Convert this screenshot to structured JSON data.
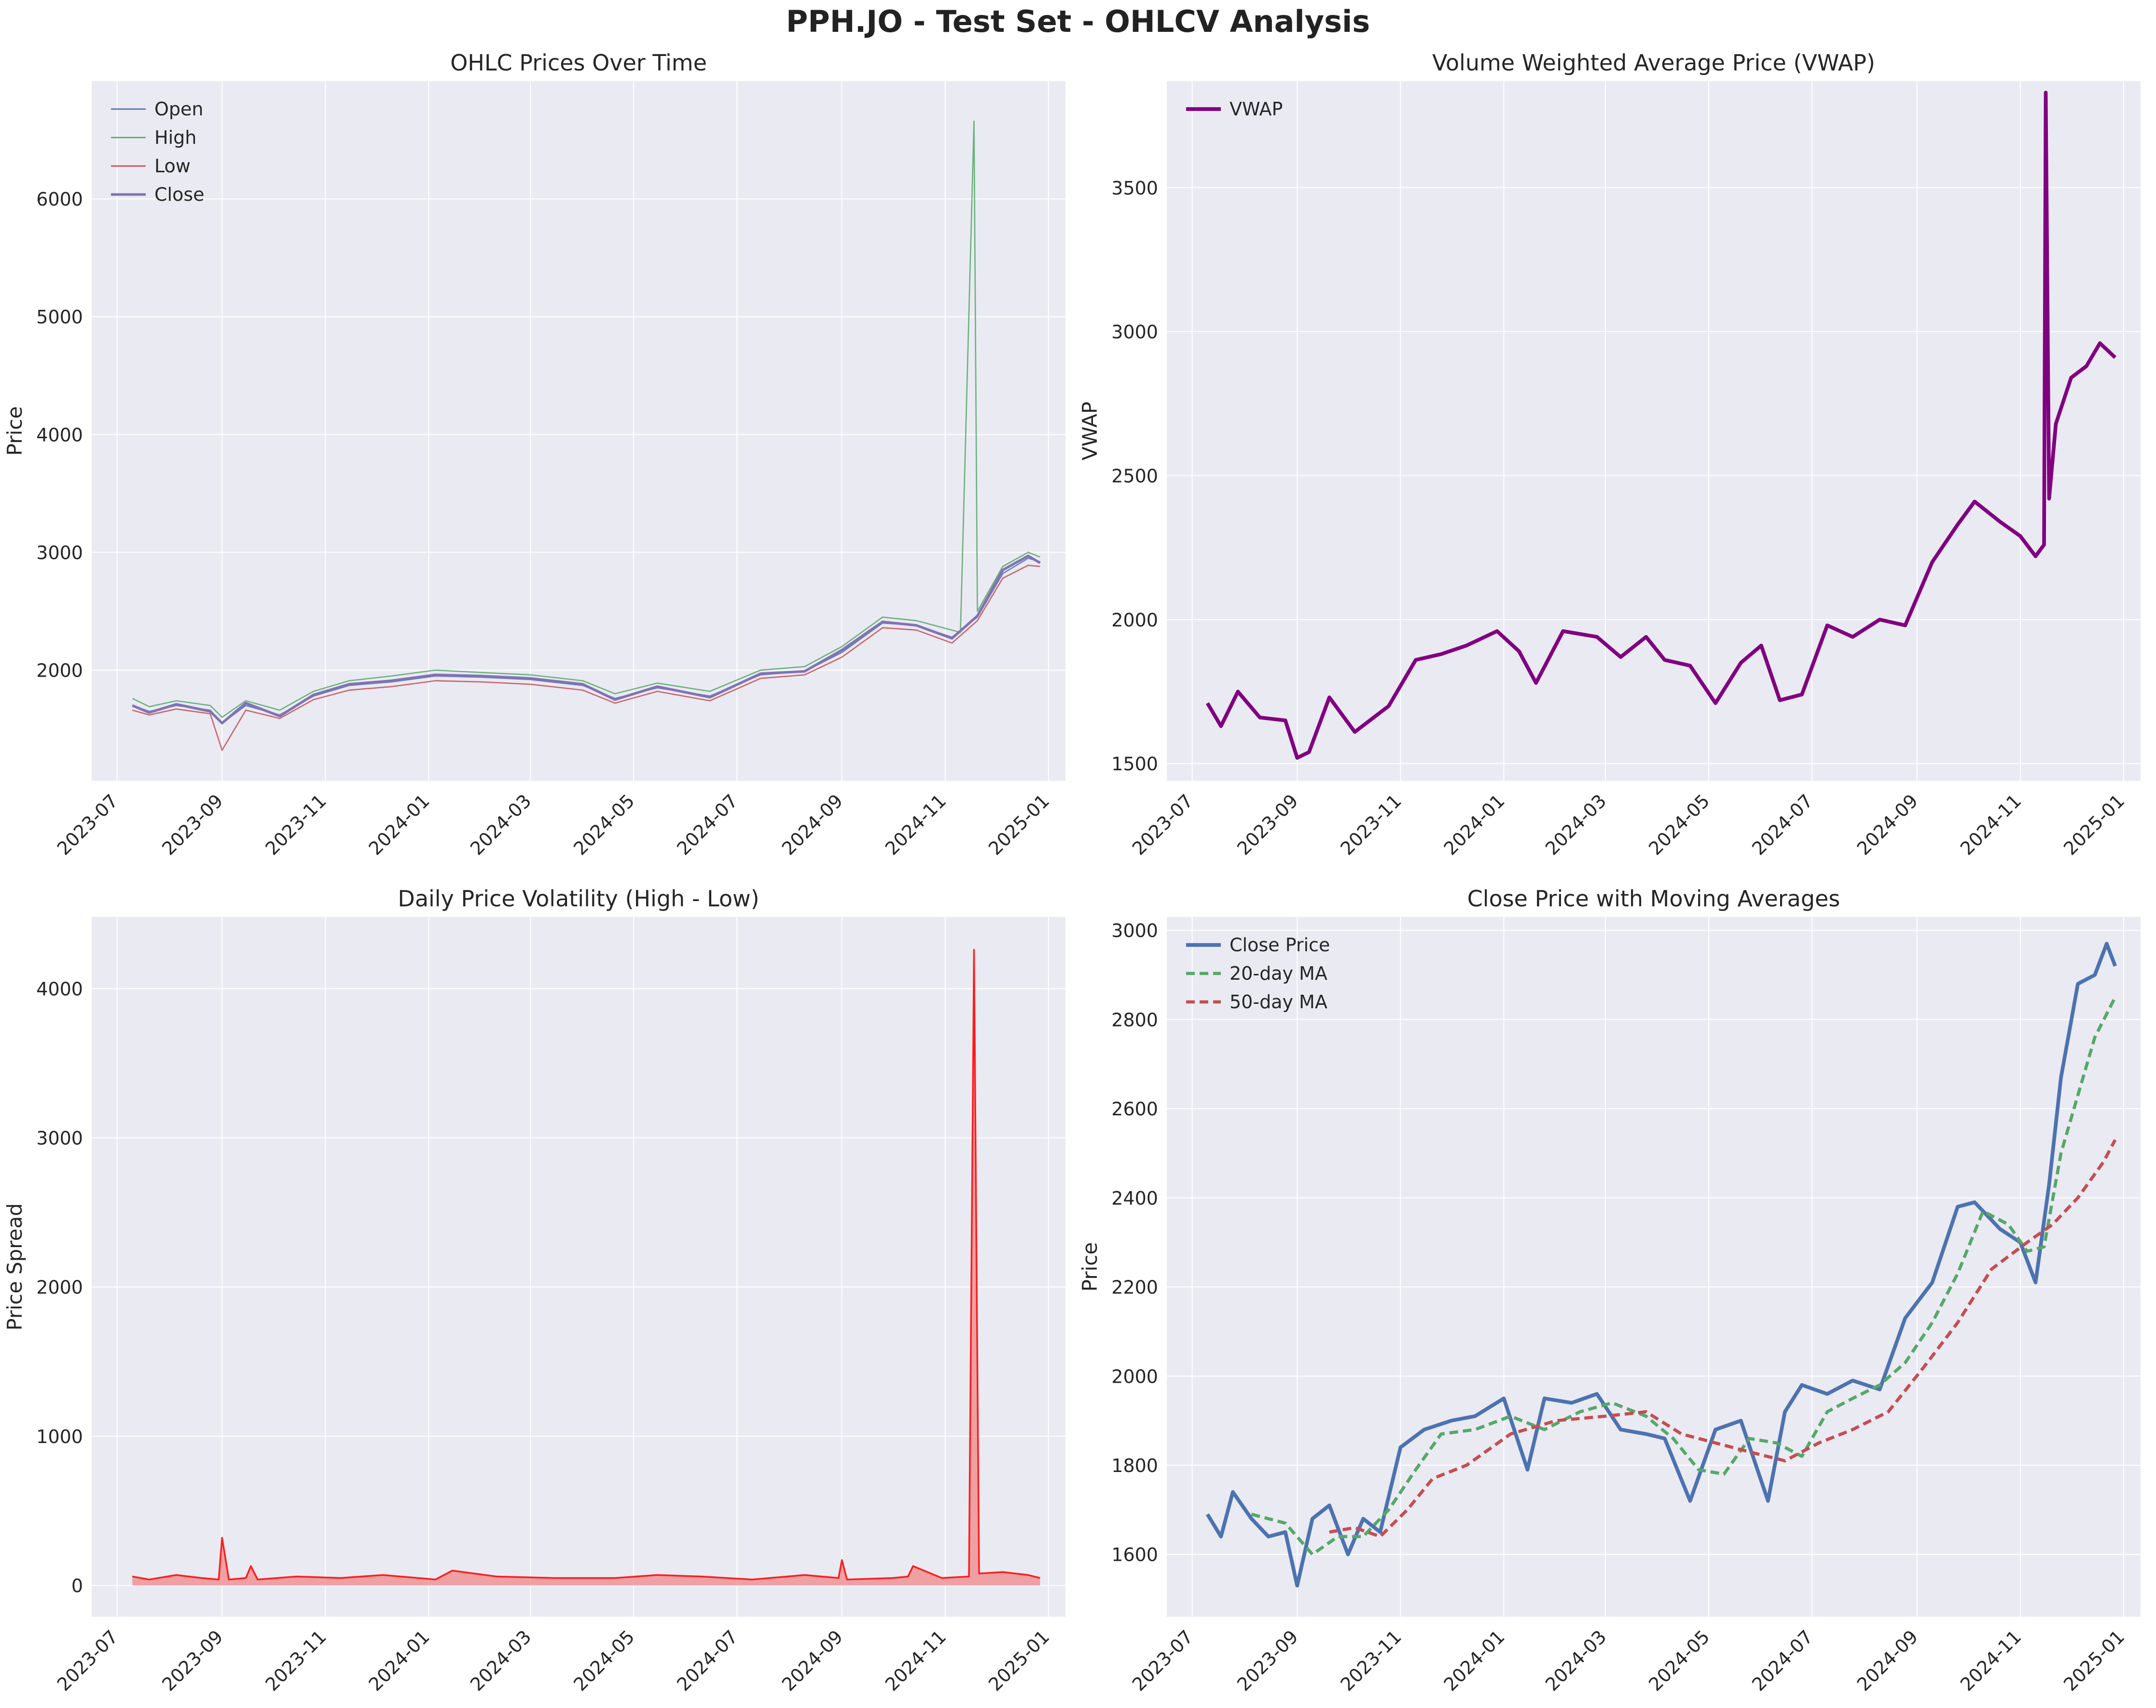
{
  "figure": {
    "title": "PPH.JO - Test Set - OHLCV Analysis"
  },
  "chart_data": [
    {
      "type": "line",
      "id": "ohlc",
      "title": "OHLC Prices Over Time",
      "xlabel": "",
      "ylabel": "Price",
      "x_axis": "date",
      "xlim": [
        "2023-06-16",
        "2025-01-11"
      ],
      "ylim": [
        1060,
        7000
      ],
      "yticks": [
        2000,
        3000,
        4000,
        5000,
        6000
      ],
      "xticks": [
        "2023-07",
        "2023-09",
        "2023-11",
        "2024-01",
        "2024-03",
        "2024-05",
        "2024-07",
        "2024-09",
        "2024-11",
        "2025-01"
      ],
      "grid": true,
      "legend": "top-left",
      "series": [
        {
          "name": "Open",
          "color": "#4c72b0",
          "width": 1.2,
          "x": [
            "2023-07-10",
            "2023-07-20",
            "2023-08-05",
            "2023-08-25",
            "2023-09-01",
            "2023-09-15",
            "2023-10-05",
            "2023-10-25",
            "2023-11-15",
            "2023-12-10",
            "2024-01-05",
            "2024-02-01",
            "2024-03-01",
            "2024-04-01",
            "2024-04-20",
            "2024-05-15",
            "2024-06-15",
            "2024-07-15",
            "2024-08-10",
            "2024-09-01",
            "2024-09-25",
            "2024-10-15",
            "2024-11-05",
            "2024-11-20",
            "2024-12-05",
            "2024-12-20",
            "2024-12-27"
          ],
          "y": [
            1700,
            1650,
            1700,
            1660,
            1550,
            1700,
            1620,
            1780,
            1870,
            1900,
            1950,
            1940,
            1920,
            1870,
            1760,
            1850,
            1780,
            1960,
            1990,
            2150,
            2400,
            2380,
            2280,
            2450,
            2820,
            2950,
            2920
          ]
        },
        {
          "name": "High",
          "color": "#55a868",
          "width": 1.2,
          "x": [
            "2023-07-10",
            "2023-07-20",
            "2023-08-05",
            "2023-08-25",
            "2023-09-01",
            "2023-09-15",
            "2023-10-05",
            "2023-10-25",
            "2023-11-15",
            "2023-12-10",
            "2024-01-05",
            "2024-02-01",
            "2024-03-01",
            "2024-04-01",
            "2024-04-20",
            "2024-05-15",
            "2024-06-15",
            "2024-07-15",
            "2024-08-10",
            "2024-09-01",
            "2024-09-25",
            "2024-10-15",
            "2024-11-10",
            "2024-11-18",
            "2024-11-20",
            "2024-12-05",
            "2024-12-20",
            "2024-12-27"
          ],
          "y": [
            1760,
            1690,
            1740,
            1700,
            1600,
            1740,
            1660,
            1820,
            1910,
            1950,
            2000,
            1980,
            1960,
            1910,
            1800,
            1890,
            1820,
            2000,
            2030,
            2200,
            2450,
            2420,
            2320,
            6660,
            2500,
            2880,
            3000,
            2960
          ]
        },
        {
          "name": "Low",
          "color": "#c44e52",
          "width": 1.2,
          "x": [
            "2023-07-10",
            "2023-07-20",
            "2023-08-05",
            "2023-08-25",
            "2023-09-01",
            "2023-09-15",
            "2023-10-05",
            "2023-10-25",
            "2023-11-15",
            "2023-12-10",
            "2024-01-05",
            "2024-02-01",
            "2024-03-01",
            "2024-04-01",
            "2024-04-20",
            "2024-05-15",
            "2024-06-15",
            "2024-07-15",
            "2024-08-10",
            "2024-09-01",
            "2024-09-25",
            "2024-10-15",
            "2024-11-05",
            "2024-11-20",
            "2024-12-05",
            "2024-12-20",
            "2024-12-27"
          ],
          "y": [
            1660,
            1620,
            1670,
            1630,
            1320,
            1660,
            1590,
            1750,
            1830,
            1860,
            1910,
            1900,
            1880,
            1830,
            1720,
            1820,
            1740,
            1930,
            1960,
            2110,
            2360,
            2340,
            2230,
            2420,
            2780,
            2890,
            2880
          ]
        },
        {
          "name": "Close",
          "color": "#8172b3",
          "width": 2.4,
          "x": [
            "2023-07-10",
            "2023-07-20",
            "2023-08-05",
            "2023-08-25",
            "2023-09-01",
            "2023-09-15",
            "2023-10-05",
            "2023-10-25",
            "2023-11-15",
            "2023-12-10",
            "2024-01-05",
            "2024-02-01",
            "2024-03-01",
            "2024-04-01",
            "2024-04-20",
            "2024-05-15",
            "2024-06-15",
            "2024-07-15",
            "2024-08-10",
            "2024-09-01",
            "2024-09-25",
            "2024-10-15",
            "2024-11-05",
            "2024-11-20",
            "2024-12-05",
            "2024-12-20",
            "2024-12-27"
          ],
          "y": [
            1700,
            1640,
            1710,
            1650,
            1550,
            1720,
            1610,
            1790,
            1880,
            1910,
            1960,
            1950,
            1930,
            1880,
            1750,
            1860,
            1770,
            1970,
            1990,
            2170,
            2410,
            2380,
            2270,
            2460,
            2850,
            2970,
            2910
          ]
        }
      ]
    },
    {
      "type": "line",
      "id": "vwap",
      "title": "Volume Weighted Average Price (VWAP)",
      "xlabel": "",
      "ylabel": "VWAP",
      "x_axis": "date",
      "xlim": [
        "2023-06-16",
        "2025-01-11"
      ],
      "ylim": [
        1440,
        3870
      ],
      "yticks": [
        1500,
        2000,
        2500,
        3000,
        3500
      ],
      "xticks": [
        "2023-07",
        "2023-09",
        "2023-11",
        "2024-01",
        "2024-03",
        "2024-05",
        "2024-07",
        "2024-09",
        "2024-11",
        "2025-01"
      ],
      "grid": true,
      "legend": "top-left",
      "series": [
        {
          "name": "VWAP",
          "color": "#800080",
          "width": 3.5,
          "x": [
            "2023-07-10",
            "2023-07-18",
            "2023-07-28",
            "2023-08-10",
            "2023-08-25",
            "2023-09-01",
            "2023-09-08",
            "2023-09-20",
            "2023-10-05",
            "2023-10-25",
            "2023-11-10",
            "2023-11-25",
            "2023-12-10",
            "2023-12-28",
            "2024-01-10",
            "2024-01-20",
            "2024-02-05",
            "2024-02-25",
            "2024-03-10",
            "2024-03-25",
            "2024-04-05",
            "2024-04-20",
            "2024-05-05",
            "2024-05-20",
            "2024-06-01",
            "2024-06-12",
            "2024-06-25",
            "2024-07-10",
            "2024-07-25",
            "2024-08-10",
            "2024-08-25",
            "2024-09-10",
            "2024-09-25",
            "2024-10-05",
            "2024-10-20",
            "2024-11-01",
            "2024-11-10",
            "2024-11-15",
            "2024-11-16",
            "2024-11-18",
            "2024-11-22",
            "2024-12-01",
            "2024-12-10",
            "2024-12-18",
            "2024-12-27"
          ],
          "y": [
            1710,
            1630,
            1750,
            1660,
            1650,
            1520,
            1540,
            1730,
            1610,
            1700,
            1860,
            1880,
            1910,
            1960,
            1890,
            1780,
            1960,
            1940,
            1870,
            1940,
            1860,
            1840,
            1710,
            1850,
            1910,
            1720,
            1740,
            1980,
            1940,
            2000,
            1980,
            2200,
            2330,
            2410,
            2340,
            2290,
            2220,
            2260,
            3830,
            2420,
            2680,
            2840,
            2880,
            2960,
            2910
          ]
        }
      ]
    },
    {
      "type": "area",
      "id": "volatility",
      "title": "Daily Price Volatility (High - Low)",
      "xlabel": "",
      "ylabel": "Price Spread",
      "x_axis": "date",
      "xlim": [
        "2023-06-16",
        "2025-01-11"
      ],
      "ylim": [
        -210,
        4480
      ],
      "yticks": [
        0,
        1000,
        2000,
        3000,
        4000
      ],
      "xticks": [
        "2023-07",
        "2023-09",
        "2023-11",
        "2024-01",
        "2024-03",
        "2024-05",
        "2024-07",
        "2024-09",
        "2024-11",
        "2025-01"
      ],
      "grid": true,
      "series": [
        {
          "color": "#ff0000",
          "fill": "#f08080",
          "width": 1.6,
          "x": [
            "2023-07-10",
            "2023-07-20",
            "2023-08-05",
            "2023-08-20",
            "2023-08-30",
            "2023-09-01",
            "2023-09-05",
            "2023-09-15",
            "2023-09-18",
            "2023-09-22",
            "2023-10-15",
            "2023-11-10",
            "2023-12-05",
            "2024-01-05",
            "2024-01-15",
            "2024-02-10",
            "2024-03-15",
            "2024-04-20",
            "2024-05-15",
            "2024-06-10",
            "2024-07-10",
            "2024-08-10",
            "2024-08-30",
            "2024-09-01",
            "2024-09-04",
            "2024-10-01",
            "2024-10-10",
            "2024-10-13",
            "2024-10-30",
            "2024-11-15",
            "2024-11-18",
            "2024-11-21",
            "2024-12-05",
            "2024-12-20",
            "2024-12-27"
          ],
          "y": [
            60,
            40,
            70,
            50,
            40,
            320,
            40,
            50,
            130,
            40,
            60,
            50,
            70,
            40,
            100,
            60,
            50,
            50,
            70,
            60,
            40,
            70,
            50,
            170,
            40,
            50,
            60,
            130,
            50,
            60,
            4260,
            80,
            90,
            70,
            50
          ]
        }
      ]
    },
    {
      "type": "line",
      "id": "moving-averages",
      "title": "Close Price with Moving Averages",
      "xlabel": "",
      "ylabel": "Price",
      "x_axis": "date",
      "xlim": [
        "2023-06-16",
        "2025-01-11"
      ],
      "ylim": [
        1460,
        3030
      ],
      "yticks": [
        1600,
        1800,
        2000,
        2200,
        2400,
        2600,
        2800,
        3000
      ],
      "xticks": [
        "2023-07",
        "2023-09",
        "2023-11",
        "2024-01",
        "2024-03",
        "2024-05",
        "2024-07",
        "2024-09",
        "2024-11",
        "2025-01"
      ],
      "grid": true,
      "legend": "top-left",
      "series": [
        {
          "name": "Close Price",
          "color": "#4c72b0",
          "width": 3.5,
          "dash": false,
          "x": [
            "2023-07-10",
            "2023-07-18",
            "2023-07-25",
            "2023-08-05",
            "2023-08-15",
            "2023-08-25",
            "2023-09-01",
            "2023-09-10",
            "2023-09-20",
            "2023-10-01",
            "2023-10-10",
            "2023-10-20",
            "2023-11-01",
            "2023-11-15",
            "2023-12-01",
            "2023-12-15",
            "2024-01-01",
            "2024-01-15",
            "2024-01-25",
            "2024-02-10",
            "2024-02-25",
            "2024-03-10",
            "2024-03-25",
            "2024-04-05",
            "2024-04-20",
            "2024-05-05",
            "2024-05-20",
            "2024-06-05",
            "2024-06-15",
            "2024-06-25",
            "2024-07-10",
            "2024-07-25",
            "2024-08-10",
            "2024-08-25",
            "2024-09-10",
            "2024-09-25",
            "2024-10-05",
            "2024-10-20",
            "2024-11-01",
            "2024-11-10",
            "2024-11-18",
            "2024-11-25",
            "2024-12-05",
            "2024-12-15",
            "2024-12-22",
            "2024-12-27"
          ],
          "y": [
            1690,
            1640,
            1740,
            1680,
            1640,
            1650,
            1530,
            1680,
            1710,
            1600,
            1680,
            1650,
            1840,
            1880,
            1900,
            1910,
            1950,
            1790,
            1950,
            1940,
            1960,
            1880,
            1870,
            1860,
            1720,
            1880,
            1900,
            1720,
            1920,
            1980,
            1960,
            1990,
            1970,
            2130,
            2210,
            2380,
            2390,
            2330,
            2300,
            2210,
            2430,
            2670,
            2880,
            2900,
            2970,
            2920
          ]
        },
        {
          "name": "20-day MA",
          "color": "#55a868",
          "width": 3,
          "dash": true,
          "x": [
            "2023-08-05",
            "2023-08-25",
            "2023-09-10",
            "2023-09-25",
            "2023-10-10",
            "2023-10-25",
            "2023-11-10",
            "2023-11-25",
            "2023-12-15",
            "2024-01-05",
            "2024-01-25",
            "2024-02-15",
            "2024-03-05",
            "2024-03-25",
            "2024-04-10",
            "2024-04-25",
            "2024-05-10",
            "2024-05-25",
            "2024-06-10",
            "2024-06-25",
            "2024-07-10",
            "2024-07-25",
            "2024-08-10",
            "2024-08-25",
            "2024-09-10",
            "2024-09-25",
            "2024-10-10",
            "2024-10-25",
            "2024-11-05",
            "2024-11-15",
            "2024-11-25",
            "2024-12-05",
            "2024-12-15",
            "2024-12-27"
          ],
          "y": [
            1690,
            1670,
            1600,
            1640,
            1640,
            1700,
            1790,
            1870,
            1880,
            1910,
            1880,
            1920,
            1940,
            1910,
            1860,
            1790,
            1780,
            1860,
            1850,
            1820,
            1920,
            1950,
            1980,
            2030,
            2120,
            2230,
            2370,
            2340,
            2280,
            2290,
            2500,
            2630,
            2760,
            2850
          ]
        },
        {
          "name": "50-day MA",
          "color": "#c44e52",
          "width": 3,
          "dash": true,
          "x": [
            "2023-09-20",
            "2023-10-05",
            "2023-10-20",
            "2023-11-05",
            "2023-11-20",
            "2023-12-10",
            "2024-01-05",
            "2024-02-01",
            "2024-03-01",
            "2024-03-25",
            "2024-04-15",
            "2024-05-05",
            "2024-05-25",
            "2024-06-15",
            "2024-07-05",
            "2024-07-25",
            "2024-08-15",
            "2024-09-05",
            "2024-09-25",
            "2024-10-15",
            "2024-11-05",
            "2024-11-20",
            "2024-12-05",
            "2024-12-20",
            "2024-12-27"
          ],
          "y": [
            1650,
            1660,
            1640,
            1700,
            1770,
            1800,
            1870,
            1900,
            1910,
            1920,
            1870,
            1850,
            1830,
            1810,
            1850,
            1880,
            1920,
            2020,
            2120,
            2240,
            2300,
            2340,
            2400,
            2480,
            2530
          ]
        }
      ]
    }
  ]
}
